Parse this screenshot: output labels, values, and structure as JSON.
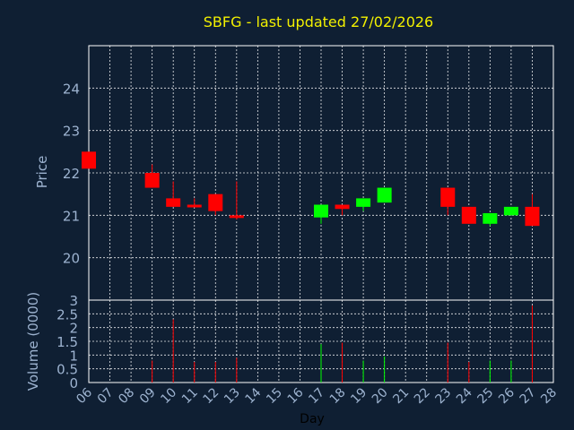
{
  "chart_data": {
    "type": "candlestick",
    "title": "SBFG - last updated 27/02/2026",
    "xlabel": "Day",
    "price_ylabel": "Price",
    "volume_ylabel": "Volume (0000)",
    "x_ticks": [
      "06",
      "07",
      "08",
      "09",
      "10",
      "11",
      "12",
      "13",
      "14",
      "15",
      "16",
      "17",
      "18",
      "19",
      "20",
      "21",
      "22",
      "23",
      "24",
      "25",
      "26",
      "27",
      "28"
    ],
    "price_ylim": [
      19,
      25
    ],
    "price_ticks": [
      20,
      21,
      22,
      23,
      24
    ],
    "volume_ylim": [
      0,
      3
    ],
    "volume_ticks": [
      0,
      0.5,
      1,
      1.5,
      2,
      2.5,
      3
    ],
    "colors": {
      "up": "#00ff00",
      "down": "#ff0000",
      "title": "#f2f000",
      "background": "#0f1f33"
    },
    "candles": [
      {
        "day": 6,
        "open": 22.5,
        "high": 22.5,
        "low": 22.1,
        "close": 22.1,
        "volume": 0
      },
      {
        "day": 9,
        "open": 22.0,
        "high": 22.2,
        "low": 21.65,
        "close": 21.65,
        "volume": 0.8
      },
      {
        "day": 10,
        "open": 21.4,
        "high": 21.8,
        "low": 21.2,
        "close": 21.2,
        "volume": 2.3
      },
      {
        "day": 11,
        "open": 21.25,
        "high": 21.4,
        "low": 21.2,
        "close": 21.2,
        "volume": 0.75
      },
      {
        "day": 12,
        "open": 21.5,
        "high": 21.5,
        "low": 21.0,
        "close": 21.1,
        "volume": 0.75
      },
      {
        "day": 13,
        "open": 21.0,
        "high": 21.8,
        "low": 20.9,
        "close": 20.95,
        "volume": 0.9
      },
      {
        "day": 17,
        "open": 20.95,
        "high": 21.25,
        "low": 20.8,
        "close": 21.25,
        "volume": 1.4
      },
      {
        "day": 18,
        "open": 21.25,
        "high": 21.25,
        "low": 21.0,
        "close": 21.15,
        "volume": 1.45
      },
      {
        "day": 19,
        "open": 21.2,
        "high": 21.4,
        "low": 21.1,
        "close": 21.4,
        "volume": 0.8
      },
      {
        "day": 20,
        "open": 21.3,
        "high": 21.65,
        "low": 21.3,
        "close": 21.65,
        "volume": 0.95
      },
      {
        "day": 23,
        "open": 21.65,
        "high": 21.65,
        "low": 21.0,
        "close": 21.2,
        "volume": 1.45
      },
      {
        "day": 24,
        "open": 21.2,
        "high": 21.2,
        "low": 20.8,
        "close": 20.8,
        "volume": 0.75
      },
      {
        "day": 25,
        "open": 20.8,
        "high": 21.05,
        "low": 20.75,
        "close": 21.05,
        "volume": 0.8
      },
      {
        "day": 26,
        "open": 21.0,
        "high": 21.2,
        "low": 21.0,
        "close": 21.2,
        "volume": 0.8
      },
      {
        "day": 27,
        "open": 21.2,
        "high": 21.5,
        "low": 20.75,
        "close": 20.75,
        "volume": 2.8
      }
    ]
  }
}
